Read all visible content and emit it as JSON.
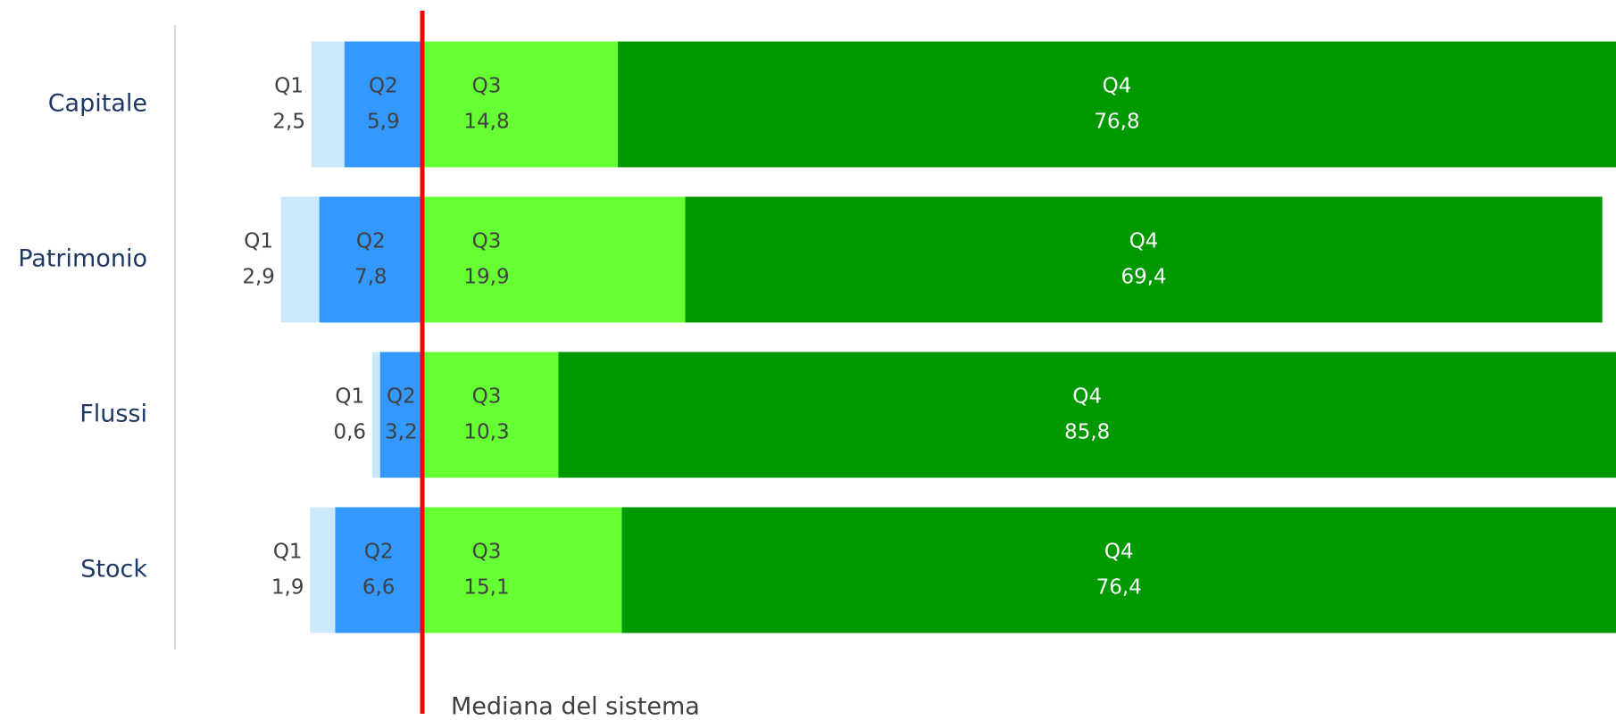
{
  "chart_data": {
    "type": "diverging-stacked-bar",
    "categories": [
      "Capitale",
      "Patrimonio",
      "Flussi",
      "Stock"
    ],
    "series": [
      {
        "name": "Q1",
        "color": "#cce9fb",
        "side": "left",
        "values": [
          2.5,
          2.9,
          0.6,
          1.9
        ],
        "value_labels": [
          "2,5",
          "2,9",
          "0,6",
          "1,9"
        ]
      },
      {
        "name": "Q2",
        "color": "#3399ff",
        "side": "left",
        "values": [
          5.9,
          7.8,
          3.2,
          6.6
        ],
        "value_labels": [
          "5,9",
          "7,8",
          "3,2",
          "6,6"
        ]
      },
      {
        "name": "Q3",
        "color": "#66ff33",
        "side": "right",
        "values": [
          14.8,
          19.9,
          10.3,
          15.1
        ],
        "value_labels": [
          "14,8",
          "19,9",
          "10,3",
          "15,1"
        ]
      },
      {
        "name": "Q4",
        "color": "#009900",
        "side": "right",
        "values": [
          76.8,
          69.4,
          85.8,
          76.4
        ],
        "value_labels": [
          "76,8",
          "69,4",
          "85,8",
          "76,4"
        ]
      }
    ],
    "annotation": "Mediana del sistema",
    "median_color": "#ff0000"
  }
}
